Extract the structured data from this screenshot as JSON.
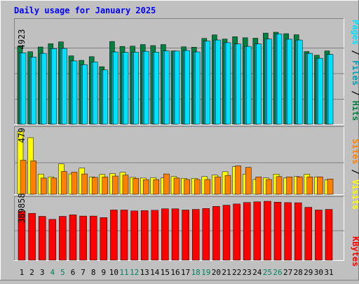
{
  "chart_data": [
    {
      "type": "bar",
      "title": "Daily usage for January 2025",
      "categories": [
        "1",
        "2",
        "3",
        "4",
        "5",
        "6",
        "7",
        "8",
        "9",
        "10",
        "11",
        "12",
        "13",
        "14",
        "15",
        "16",
        "17",
        "18",
        "19",
        "20",
        "21",
        "22",
        "23",
        "24",
        "25",
        "26",
        "27",
        "28",
        "29",
        "30",
        "31"
      ],
      "weekend_days": [
        "4",
        "5",
        "11",
        "12",
        "18",
        "19",
        "25",
        "26"
      ],
      "ymax_label": "4923",
      "ylim": [
        0,
        4923
      ],
      "series": [
        {
          "name": "Hits",
          "color": "#008040",
          "values": [
            3800,
            3530,
            3760,
            3920,
            4010,
            3330,
            3110,
            3290,
            2800,
            4030,
            3790,
            3800,
            3880,
            3830,
            3880,
            3570,
            3770,
            3750,
            4180,
            4350,
            4150,
            4260,
            4210,
            4190,
            4440,
            4480,
            4410,
            4360,
            3540,
            3360,
            3570
          ]
        },
        {
          "name": "Files",
          "color": "#00a0b0",
          "values": [
            3480,
            3270,
            3450,
            3680,
            3690,
            3080,
            2900,
            3030,
            2640,
            3520,
            3500,
            3510,
            3550,
            3510,
            3570,
            3560,
            3590,
            3520,
            4050,
            4100,
            3970,
            3910,
            3790,
            3910,
            4150,
            4400,
            4140,
            4100,
            3450,
            3210,
            3400
          ]
        },
        {
          "name": "Pages",
          "color": "#00e0ff",
          "values": [
            3480,
            3270,
            3450,
            3680,
            3690,
            3080,
            2900,
            3030,
            2640,
            3520,
            3500,
            3510,
            3550,
            3510,
            3570,
            3560,
            3590,
            3520,
            4050,
            4100,
            3970,
            3910,
            3790,
            3910,
            4150,
            4400,
            4140,
            4100,
            3450,
            3210,
            3400
          ]
        }
      ]
    },
    {
      "type": "bar",
      "ymax_label": "479",
      "ylim": [
        0,
        479
      ],
      "series": [
        {
          "name": "Visits",
          "color": "#ffff00",
          "values": [
            479,
            430,
            153,
            132,
            230,
            154,
            198,
            131,
            150,
            157,
            167,
            128,
            123,
            126,
            124,
            134,
            121,
            121,
            134,
            145,
            171,
            210,
            153,
            112,
            124,
            153,
            123,
            134,
            152,
            132,
            108
          ]
        },
        {
          "name": "Sites",
          "color": "#ff8000",
          "values": [
            258,
            253,
            123,
            123,
            173,
            168,
            154,
            128,
            131,
            138,
            145,
            121,
            111,
            111,
            154,
            123,
            112,
            112,
            112,
            132,
            143,
            216,
            204,
            132,
            112,
            134,
            132,
            132,
            132,
            132,
            116
          ]
        }
      ]
    },
    {
      "type": "bar",
      "ymax_label": "389858",
      "ylim": [
        0,
        389858
      ],
      "series": [
        {
          "name": "KBytes",
          "color": "#ff0000",
          "values": [
            325000,
            310000,
            290000,
            270000,
            290000,
            300000,
            292000,
            292000,
            282000,
            332000,
            332000,
            326000,
            328000,
            330000,
            340000,
            340000,
            332000,
            336000,
            342000,
            356000,
            364000,
            372000,
            382000,
            386000,
            389858,
            384000,
            381000,
            380000,
            350000,
            332000,
            336000
          ]
        }
      ]
    }
  ]
}
